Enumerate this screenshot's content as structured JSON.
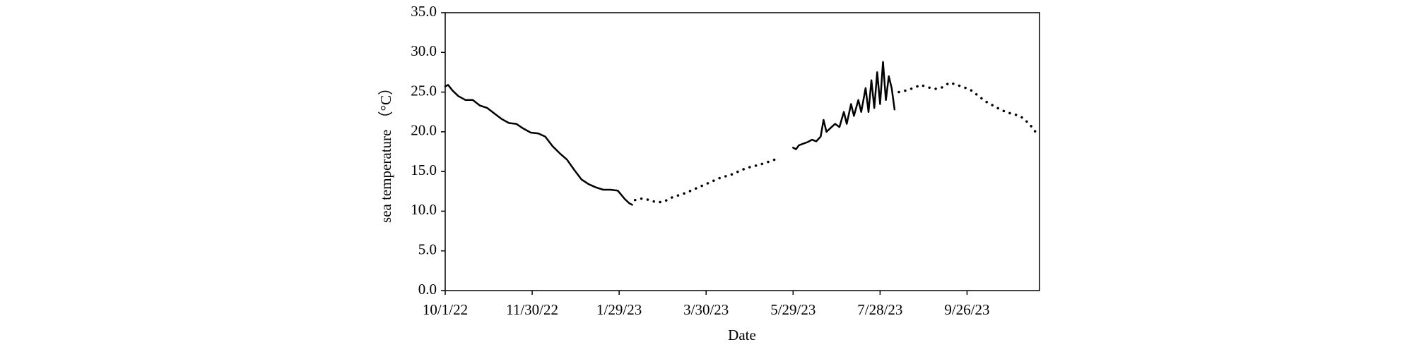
{
  "chart_data": {
    "type": "line",
    "xlabel": "Date",
    "ylabel": "sea temperature （°C）",
    "xlim": [
      "10/1/22",
      "11/15/23"
    ],
    "xticks": [
      "10/1/22",
      "11/30/22",
      "1/29/23",
      "3/30/23",
      "5/29/23",
      "7/28/23",
      "9/26/23"
    ],
    "ylim": [
      0,
      35
    ],
    "yticks": [
      {
        "value": 0,
        "label": "0.0"
      },
      {
        "value": 5,
        "label": "5.0"
      },
      {
        "value": 10,
        "label": "10.0"
      },
      {
        "value": 15,
        "label": "15.0"
      },
      {
        "value": 20,
        "label": "20.0"
      },
      {
        "value": 25,
        "label": "25.0"
      },
      {
        "value": 30,
        "label": "30.0"
      },
      {
        "value": 35,
        "label": "35.0"
      }
    ],
    "series": [
      {
        "color": "#000000",
        "style": "solid",
        "x": [
          "10/1/22",
          "10/3/22",
          "10/6/22",
          "10/10/22",
          "10/15/22",
          "10/20/22",
          "10/25/22",
          "10/30/22",
          "11/4/22",
          "11/9/22",
          "11/14/22",
          "11/19/22",
          "11/24/22",
          "11/29/22",
          "12/4/22",
          "12/9/22",
          "12/14/22",
          "12/19/22",
          "12/24/22",
          "12/29/22",
          "1/3/23",
          "1/8/23",
          "1/13/23",
          "1/18/23",
          "1/23/23",
          "1/28/23",
          "2/2/23",
          "2/5/23",
          "2/7/23"
        ],
        "values": [
          25.7,
          25.9,
          25.2,
          24.5,
          24.0,
          24.0,
          23.3,
          23.0,
          22.3,
          21.6,
          21.1,
          21.0,
          20.4,
          19.9,
          19.8,
          19.4,
          18.2,
          17.3,
          16.5,
          15.2,
          14.0,
          13.4,
          13.0,
          12.7,
          12.7,
          12.6,
          11.5,
          11.0,
          10.8
        ]
      },
      {
        "color": "#000000",
        "style": "dotted",
        "x": [
          "2/9/23",
          "2/14/23",
          "2/19/23",
          "2/24/23",
          "3/1/23",
          "3/6/23",
          "3/11/23",
          "3/16/23",
          "3/21/23",
          "3/26/23",
          "3/31/23",
          "4/5/23",
          "4/10/23",
          "4/15/23",
          "4/20/23",
          "4/25/23",
          "4/30/23",
          "5/5/23",
          "5/10/23",
          "5/15/23",
          "5/20/23"
        ],
        "values": [
          11.4,
          11.6,
          11.4,
          11.1,
          11.2,
          11.7,
          12.0,
          12.3,
          12.7,
          13.1,
          13.5,
          13.9,
          14.3,
          14.5,
          14.9,
          15.3,
          15.6,
          15.8,
          16.1,
          16.4,
          16.8
        ]
      },
      {
        "color": "#000000",
        "style": "solid",
        "x": [
          "5/29/23",
          "5/31/23",
          "6/2/23",
          "6/5/23",
          "6/8/23",
          "6/11/23",
          "6/14/23",
          "6/17/23",
          "6/19/23",
          "6/21/23",
          "6/24/23",
          "6/27/23",
          "6/30/23",
          "7/3/23",
          "7/5/23",
          "7/8/23",
          "7/10/23",
          "7/13/23",
          "7/15/23",
          "7/18/23",
          "7/20/23",
          "7/22/23",
          "7/24/23",
          "7/26/23",
          "7/28/23",
          "7/30/23",
          "8/1/23",
          "8/3/23",
          "8/5/23",
          "8/7/23"
        ],
        "values": [
          18.0,
          17.8,
          18.3,
          18.5,
          18.7,
          19.0,
          18.8,
          19.4,
          21.5,
          20.0,
          20.5,
          21.0,
          20.6,
          22.5,
          21.0,
          23.5,
          22.0,
          24.0,
          22.5,
          25.5,
          22.5,
          26.5,
          23.0,
          27.5,
          23.5,
          28.8,
          24.0,
          27.0,
          25.5,
          22.8
        ]
      },
      {
        "color": "#000000",
        "style": "dotted",
        "x": [
          "8/10/23",
          "8/15/23",
          "8/20/23",
          "8/25/23",
          "8/30/23",
          "9/4/23",
          "9/9/23",
          "9/14/23",
          "9/19/23",
          "9/24/23",
          "9/29/23",
          "10/4/23",
          "10/9/23",
          "10/14/23",
          "10/19/23",
          "10/24/23",
          "10/29/23",
          "11/3/23",
          "11/8/23",
          "11/13/23"
        ],
        "values": [
          25.0,
          25.2,
          25.5,
          25.9,
          25.6,
          25.4,
          25.6,
          26.2,
          25.9,
          25.6,
          25.2,
          24.5,
          23.8,
          23.3,
          22.8,
          22.4,
          22.2,
          21.8,
          21.0,
          19.8
        ]
      }
    ]
  }
}
